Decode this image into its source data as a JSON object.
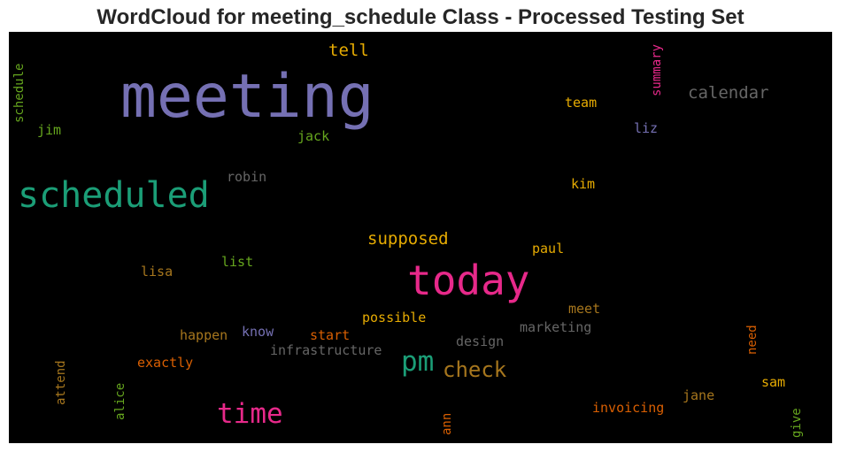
{
  "chart_data": {
    "type": "wordcloud",
    "title": "WordCloud for meeting_schedule Class - Processed Testing Set",
    "background": "#000000",
    "words": [
      {
        "text": "meeting",
        "color": "#7570b3",
        "size": "xl"
      },
      {
        "text": "scheduled",
        "color": "#1b9e77",
        "size": "l"
      },
      {
        "text": "today",
        "color": "#e7298a",
        "size": "xl"
      },
      {
        "text": "time",
        "color": "#e7298a",
        "size": "m"
      },
      {
        "text": "pm",
        "color": "#1b9e77",
        "size": "m"
      },
      {
        "text": "check",
        "color": "#a6761d",
        "size": "m"
      },
      {
        "text": "calendar",
        "color": "#666666",
        "size": "s"
      },
      {
        "text": "supposed",
        "color": "#e6ab02",
        "size": "s"
      },
      {
        "text": "tell",
        "color": "#e6ab02",
        "size": "s"
      },
      {
        "text": "summary",
        "color": "#e7298a",
        "size": "xs",
        "vertical": true
      },
      {
        "text": "schedule",
        "color": "#66a61e",
        "size": "xs",
        "vertical": true
      },
      {
        "text": "jim",
        "color": "#66a61e",
        "size": "xs"
      },
      {
        "text": "jack",
        "color": "#66a61e",
        "size": "xs"
      },
      {
        "text": "team",
        "color": "#e6ab02",
        "size": "xs"
      },
      {
        "text": "liz",
        "color": "#7570b3",
        "size": "xs"
      },
      {
        "text": "robin",
        "color": "#666666",
        "size": "xs"
      },
      {
        "text": "kim",
        "color": "#e6ab02",
        "size": "xs"
      },
      {
        "text": "paul",
        "color": "#e6ab02",
        "size": "xs"
      },
      {
        "text": "list",
        "color": "#66a61e",
        "size": "xs"
      },
      {
        "text": "lisa",
        "color": "#a6761d",
        "size": "xs"
      },
      {
        "text": "possible",
        "color": "#e6ab02",
        "size": "xs"
      },
      {
        "text": "meet",
        "color": "#a6761d",
        "size": "xs"
      },
      {
        "text": "marketing",
        "color": "#666666",
        "size": "xs"
      },
      {
        "text": "know",
        "color": "#7570b3",
        "size": "xs"
      },
      {
        "text": "happen",
        "color": "#a6761d",
        "size": "xs"
      },
      {
        "text": "start",
        "color": "#d95f02",
        "size": "xs"
      },
      {
        "text": "design",
        "color": "#666666",
        "size": "xs"
      },
      {
        "text": "infrastructure",
        "color": "#666666",
        "size": "xs"
      },
      {
        "text": "exactly",
        "color": "#d95f02",
        "size": "xs"
      },
      {
        "text": "attend",
        "color": "#a6761d",
        "size": "xs",
        "vertical": true
      },
      {
        "text": "alice",
        "color": "#66a61e",
        "size": "xs",
        "vertical": true
      },
      {
        "text": "need",
        "color": "#d95f02",
        "size": "xs",
        "vertical": true
      },
      {
        "text": "sam",
        "color": "#e6ab02",
        "size": "xs"
      },
      {
        "text": "jane",
        "color": "#a6761d",
        "size": "xs"
      },
      {
        "text": "invoicing",
        "color": "#d95f02",
        "size": "xs"
      },
      {
        "text": "ann",
        "color": "#d95f02",
        "size": "xs",
        "vertical": true
      },
      {
        "text": "give",
        "color": "#66a61e",
        "size": "xs",
        "vertical": true
      }
    ]
  }
}
